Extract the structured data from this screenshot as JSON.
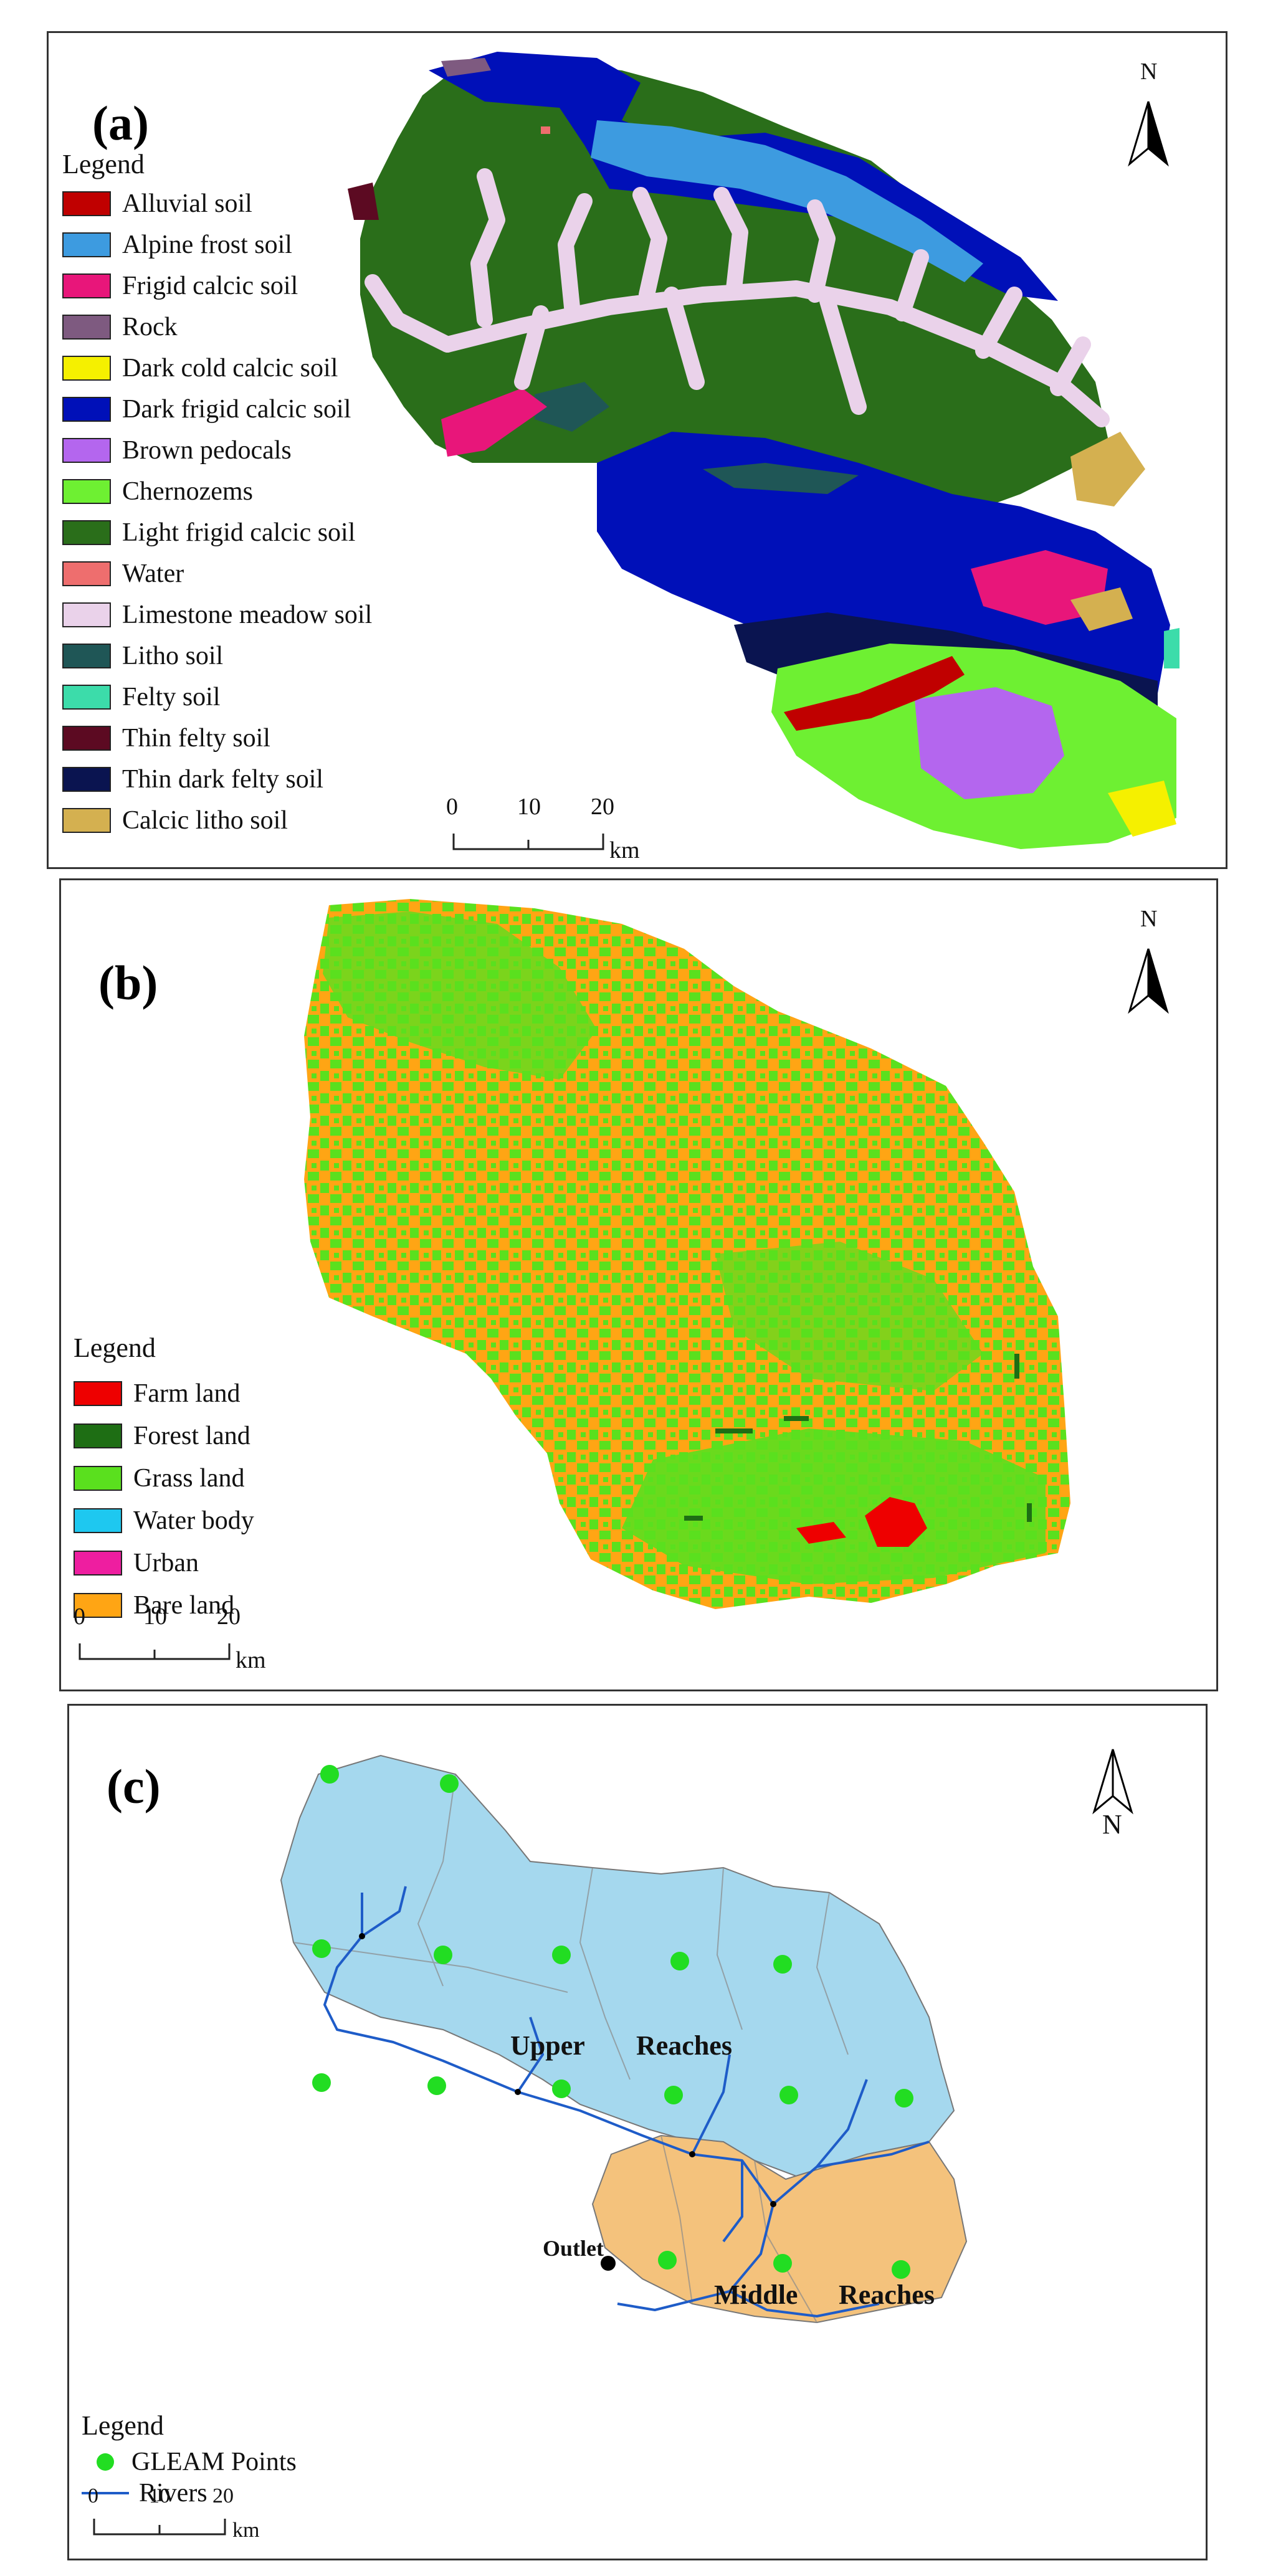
{
  "panel_a": {
    "label": "(a)",
    "legend_title": "Legend",
    "legend": [
      {
        "name": "Alluvial soil",
        "color": "#c00000"
      },
      {
        "name": "Alpine frost soil",
        "color": "#3d9be0"
      },
      {
        "name": "Frigid calcic soil",
        "color": "#e8167a"
      },
      {
        "name": "Rock",
        "color": "#7e5a80"
      },
      {
        "name": "Dark cold calcic soil",
        "color": "#f5f000"
      },
      {
        "name": "Dark frigid calcic soil",
        "color": "#0010b8"
      },
      {
        "name": "Brown pedocals",
        "color": "#b466ee"
      },
      {
        "name": "Chernozems",
        "color": "#6ef032"
      },
      {
        "name": "Light frigid calcic soil",
        "color": "#2a6e1a"
      },
      {
        "name": "Water",
        "color": "#ee6e6e"
      },
      {
        "name": "Limestone meadow soil",
        "color": "#ead2ea"
      },
      {
        "name": "Litho soil",
        "color": "#1f5656"
      },
      {
        "name": "Felty soil",
        "color": "#3cdcaa"
      },
      {
        "name": "Thin felty soil",
        "color": "#5c0a22"
      },
      {
        "name": "Thin dark felty soil",
        "color": "#0a1450"
      },
      {
        "name": "Calcic litho soil",
        "color": "#d4b050"
      }
    ],
    "scale": {
      "ticks": [
        "0",
        "10",
        "20"
      ],
      "unit": "km"
    },
    "north": "N"
  },
  "panel_b": {
    "label": "(b)",
    "legend_title": "Legend",
    "legend": [
      {
        "name": "Farm land",
        "color": "#ee0000"
      },
      {
        "name": "Forest land",
        "color": "#1e6e14"
      },
      {
        "name": "Grass land",
        "color": "#5ae01e"
      },
      {
        "name": "Water body",
        "color": "#1ec8f0"
      },
      {
        "name": "Urban",
        "color": "#ee1ea0"
      },
      {
        "name": "Bare land",
        "color": "#ffa514"
      }
    ],
    "scale": {
      "ticks": [
        "0",
        "10",
        "20"
      ],
      "unit": "km"
    },
    "north": "N"
  },
  "panel_c": {
    "label": "(c)",
    "legend_title": "Legend",
    "legend": [
      {
        "name": "GLEAM Points",
        "color": "#22dd22",
        "symbol": "dot"
      },
      {
        "name": "Rivers",
        "color": "#1e5cc8",
        "symbol": "line"
      }
    ],
    "annotations": {
      "upper": "Upper",
      "reaches_upper": "Reaches",
      "middle": "Middle",
      "reaches_middle": "Reaches",
      "outlet": "Outlet"
    },
    "scale": {
      "ticks": [
        "0",
        "10",
        "20"
      ],
      "unit": "km"
    },
    "north": "N",
    "colors": {
      "upper_basin": "#a5d8ee",
      "middle_basin": "#f4c27c",
      "river": "#1e5cc8"
    }
  }
}
